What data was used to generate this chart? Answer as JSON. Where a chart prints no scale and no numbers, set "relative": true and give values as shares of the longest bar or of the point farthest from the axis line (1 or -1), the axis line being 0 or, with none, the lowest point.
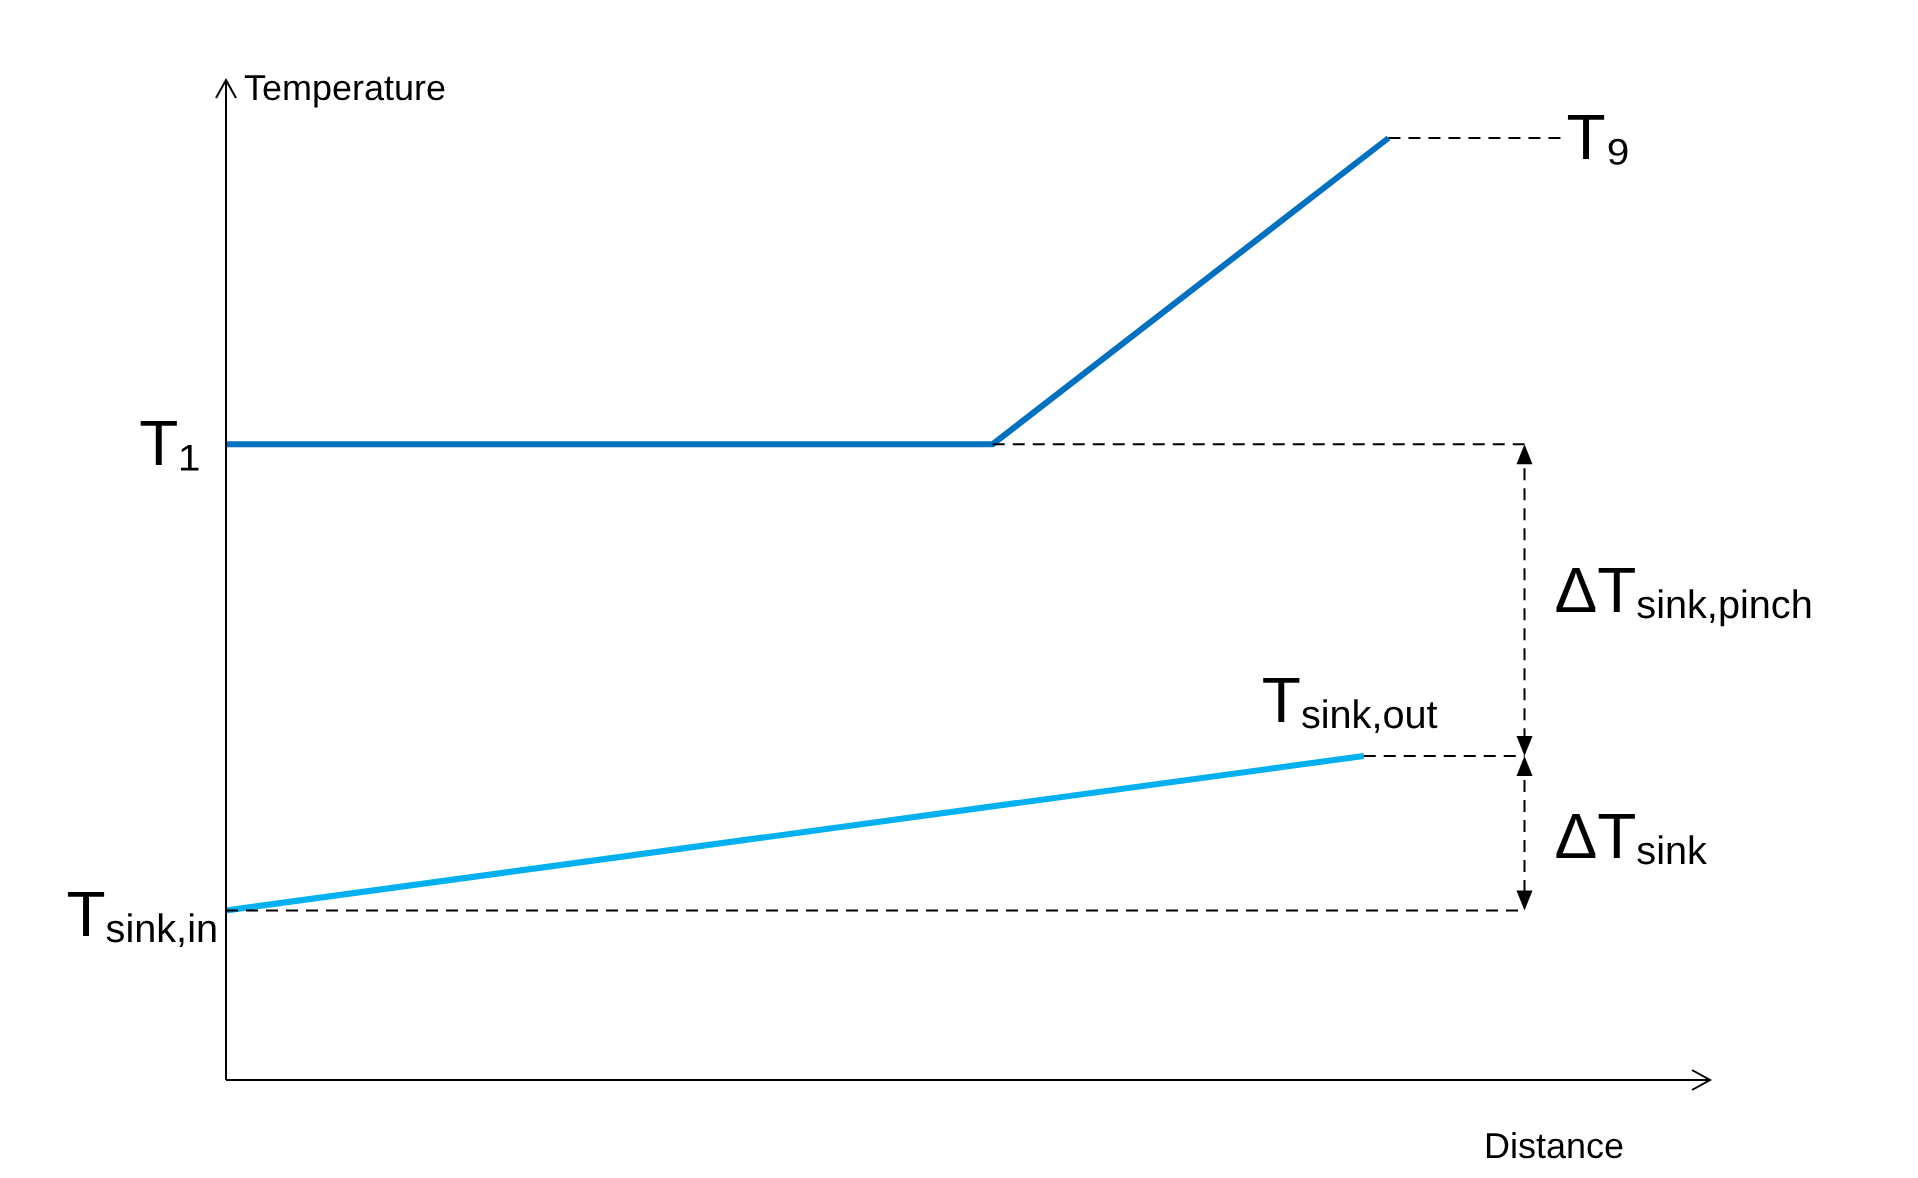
{
  "chart_data": {
    "type": "line",
    "relative": true,
    "xlabel": "Distance",
    "ylabel": "Temperature",
    "legend": false,
    "marker": "none",
    "line_style": "solid",
    "categories": [
      null,
      null,
      null,
      null,
      null,
      null,
      null,
      null,
      null,
      null,
      null,
      null,
      null,
      null,
      null,
      null,
      null,
      null,
      null,
      null,
      null,
      null,
      null,
      null,
      null,
      null,
      null,
      null,
      null,
      null,
      null,
      null,
      null,
      null,
      null,
      null,
      null,
      null,
      null,
      null,
      null,
      null,
      null,
      null,
      null,
      null,
      null,
      null,
      null,
      null,
      null,
      null,
      null,
      null,
      null,
      null,
      null,
      null,
      null,
      null,
      null
    ],
    "series": [
      {
        "color": "#0070c0",
        "values": [
          0.675,
          null,
          null,
          null,
          null,
          null,
          null,
          null,
          null,
          null,
          null,
          null,
          null,
          null,
          null,
          null,
          null,
          null,
          null,
          null,
          null,
          null,
          null,
          null,
          null,
          null,
          null,
          null,
          null,
          null,
          null,
          0.675,
          null,
          null,
          null,
          null,
          null,
          null,
          null,
          null,
          null,
          null,
          null,
          null,
          null,
          null,
          null,
          1,
          null,
          null,
          null,
          null,
          null,
          null,
          null,
          null,
          null,
          null,
          null,
          null,
          null
        ]
      },
      {
        "color": "#00b0f0",
        "values": [
          0.18,
          null,
          null,
          null,
          null,
          null,
          null,
          null,
          null,
          null,
          null,
          null,
          null,
          null,
          null,
          null,
          null,
          null,
          null,
          null,
          null,
          null,
          null,
          null,
          null,
          null,
          null,
          null,
          null,
          null,
          null,
          null,
          null,
          null,
          null,
          null,
          null,
          null,
          null,
          null,
          null,
          null,
          null,
          null,
          null,
          null,
          0.344,
          null,
          null,
          null,
          null,
          null,
          null,
          null,
          null,
          null,
          null,
          null,
          null,
          null,
          null
        ]
      }
    ],
    "ref_lines": [
      {
        "axis": "y",
        "value": 1,
        "color": "#000000",
        "line_style": "dashed"
      },
      {
        "axis": "y",
        "value": 0.675,
        "color": "#000000",
        "line_style": "dashed"
      },
      {
        "axis": "y",
        "value": 0.344,
        "color": "#000000",
        "line_style": "dashed"
      },
      {
        "axis": "y",
        "value": 0.18,
        "color": "#000000",
        "line_style": "dashed"
      }
    ],
    "annotations": [
      "T₉",
      "T₁",
      "T$_{sink,out}$",
      "T$_{sink,in}$",
      "ΔT$_{sink,pinch}$",
      "ΔT$_{sink}$"
    ]
  }
}
